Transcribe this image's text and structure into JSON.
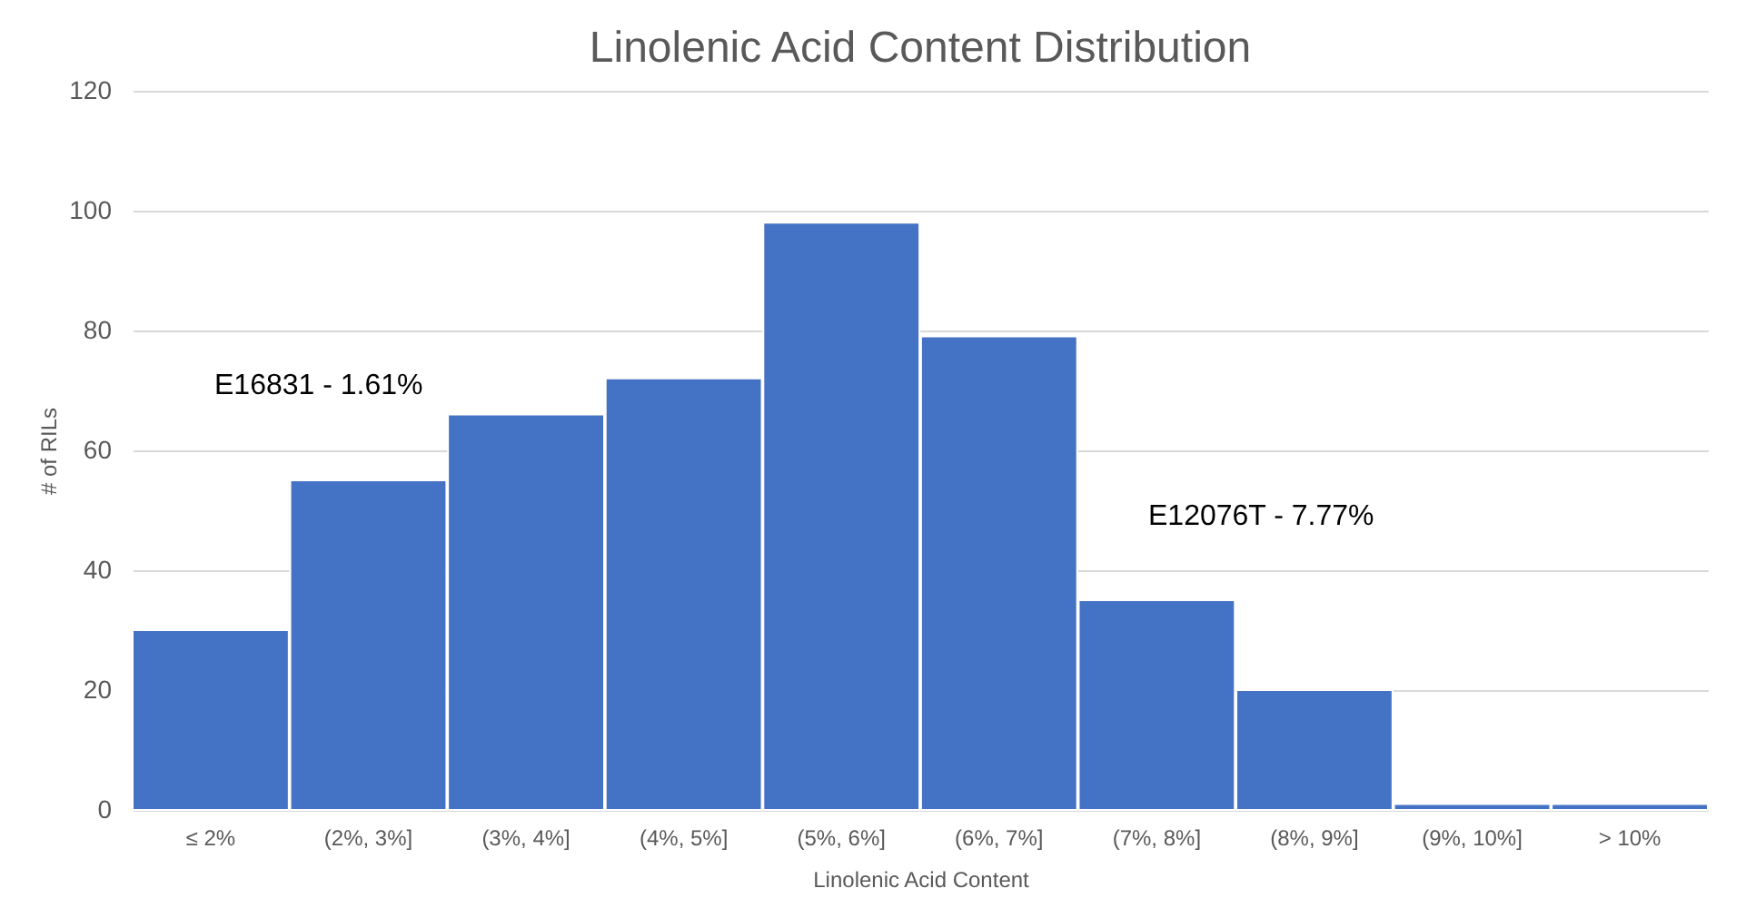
{
  "chart_data": {
    "type": "bar",
    "title": "Linolenic Acid Content Distribution",
    "xlabel": "Linolenic Acid Content",
    "ylabel": "# of RILs",
    "categories": [
      "≤ 2%",
      "(2%, 3%]",
      "(3%, 4%]",
      "(4%, 5%]",
      "(5%, 6%]",
      "(6%, 7%]",
      "(7%, 8%]",
      "(8%, 9%]",
      "(9%, 10%]",
      "> 10%"
    ],
    "values": [
      30,
      55,
      66,
      72,
      98,
      79,
      35,
      20,
      1,
      1
    ],
    "color": "#4472c4",
    "ylim": [
      0,
      120
    ],
    "yticks": [
      0,
      20,
      40,
      60,
      80,
      100,
      120
    ],
    "grid": "y",
    "annotations": [
      "E16831 - 1.61%",
      "E12076T - 7.77%"
    ]
  }
}
